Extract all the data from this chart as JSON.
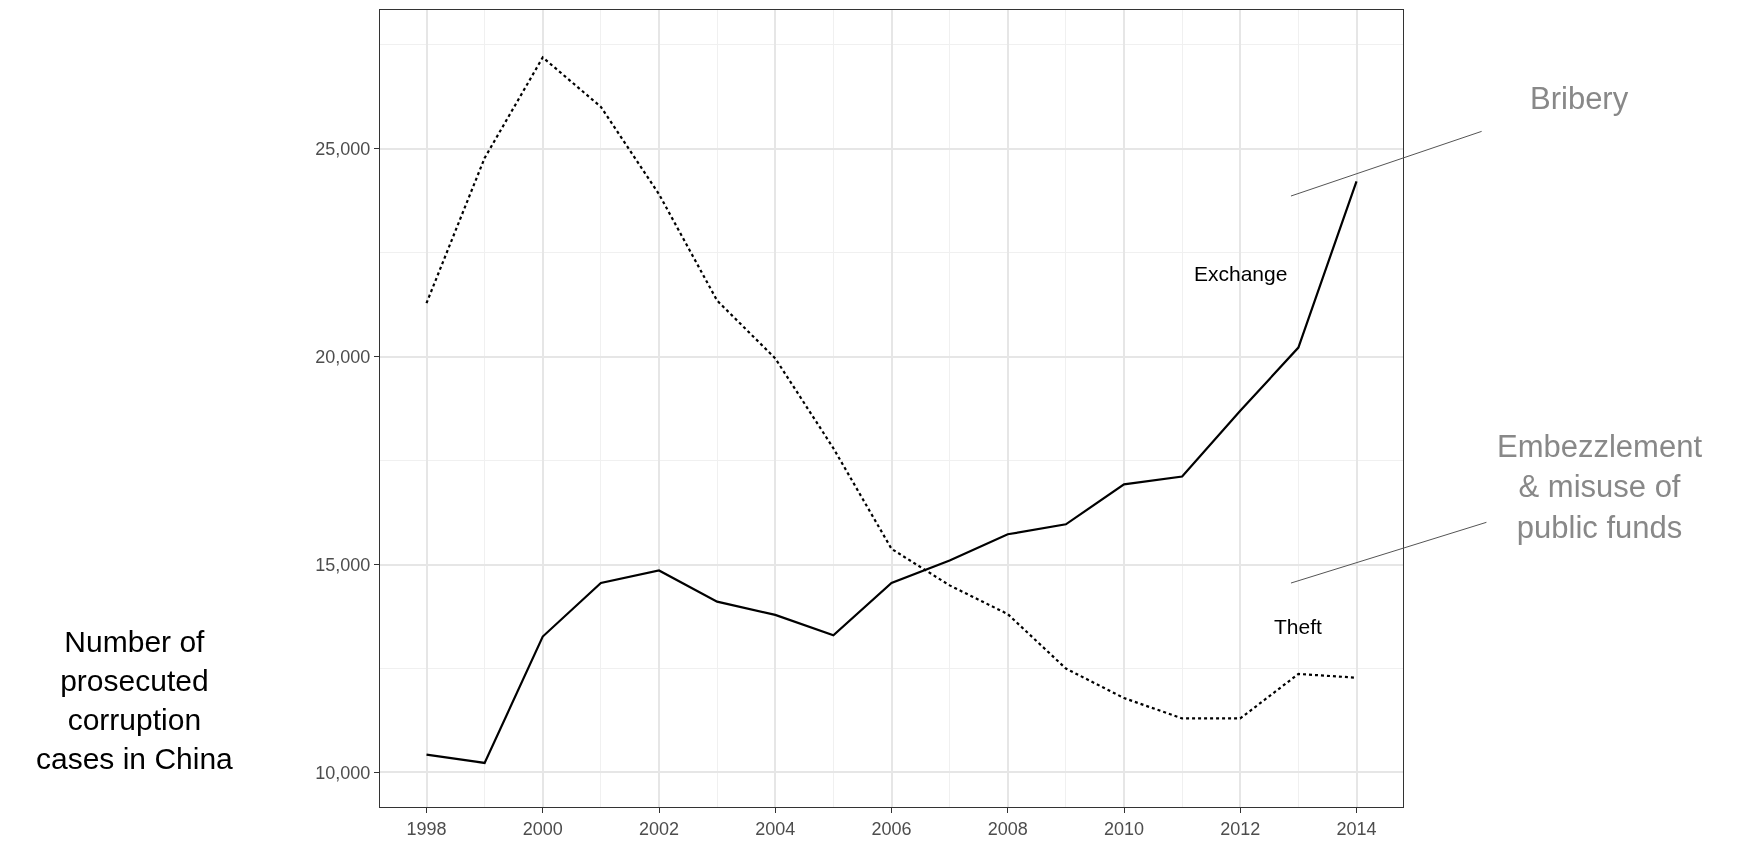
{
  "chart_data": {
    "type": "line",
    "ylabel": "Number of prosecuted corruption cases in China",
    "x": [
      1998,
      1999,
      2000,
      2001,
      2002,
      2003,
      2004,
      2005,
      2006,
      2007,
      2008,
      2009,
      2010,
      2011,
      2012,
      2013,
      2014
    ],
    "series": [
      {
        "color": "#000000",
        "line_style": "dotted",
        "values": [
          21290,
          24780,
          27200,
          26010,
          23910,
          21350,
          19960,
          17800,
          15380,
          14500,
          13810,
          12500,
          11790,
          11300,
          11300,
          12370,
          12280
        ]
      },
      {
        "color": "#000000",
        "line_style": "solid",
        "values": [
          10430,
          10230,
          13270,
          14560,
          14860,
          14110,
          13790,
          13300,
          14560,
          15100,
          15730,
          15970,
          16930,
          17120,
          18700,
          20220,
          24220
        ]
      }
    ],
    "xlim": [
      1997.2,
      2014.8
    ],
    "xticks": [
      1998,
      {
        "value": 1999,
        "label": null
      },
      2000,
      {
        "value": 2001,
        "label": null
      },
      2002,
      {
        "value": 2003,
        "label": null
      },
      2004,
      {
        "value": 2005,
        "label": null
      },
      2006,
      {
        "value": 2007,
        "label": null
      },
      2008,
      {
        "value": 2009,
        "label": null
      },
      2010,
      {
        "value": 2011,
        "label": null
      },
      2012,
      {
        "value": 2013,
        "label": null
      },
      2014
    ],
    "ylim": [
      9170,
      28340
    ],
    "yticks": [
      {
        "value": 10000,
        "label": "10,000"
      },
      {
        "value": 12500,
        "label": null
      },
      {
        "value": 15000,
        "label": "15,000"
      },
      {
        "value": 17500,
        "label": null
      },
      {
        "value": 20000,
        "label": "20,000"
      },
      {
        "value": 22500,
        "label": null
      },
      {
        "value": 25000,
        "label": "25,000"
      },
      {
        "value": 27500,
        "label": null
      }
    ],
    "grid": true,
    "marker": "none",
    "annotations": [
      "Exchange",
      "Theft",
      "Bribery",
      "Embezzlement & misuse of public funds"
    ]
  }
}
